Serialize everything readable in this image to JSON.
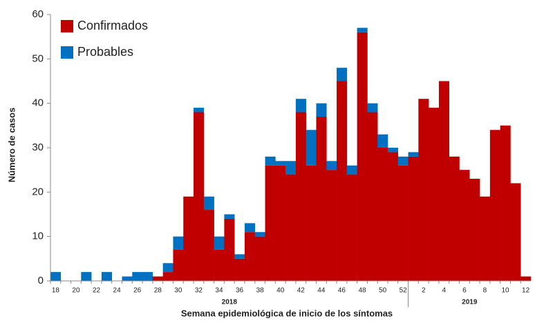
{
  "chart_data": {
    "type": "stacked_bar",
    "y_label": "Número de casos",
    "x_label": "Semana epidemiológica de inicio de los síntomas",
    "year_labels": [
      "2018",
      "2019"
    ],
    "categories": [
      "18",
      null,
      "20",
      null,
      "22",
      null,
      "24",
      null,
      "26",
      null,
      "28",
      null,
      "30",
      null,
      "32",
      null,
      "34",
      null,
      "36",
      null,
      "38",
      null,
      "40",
      null,
      "42",
      null,
      "44",
      null,
      "46",
      null,
      "48",
      null,
      "50",
      null,
      "52",
      null,
      "2",
      null,
      "4",
      null,
      "6",
      null,
      "8",
      null,
      "10",
      null,
      "12"
    ],
    "series": [
      {
        "name": "Confirmados",
        "color": "#c00000",
        "values": [
          0,
          0,
          0,
          0,
          0,
          0,
          0,
          0,
          0,
          0,
          1,
          2,
          7,
          19,
          38,
          16,
          7,
          14,
          5,
          11,
          10,
          26,
          26,
          24,
          38,
          26,
          37,
          25,
          45,
          24,
          56,
          38,
          30,
          29,
          26,
          28,
          41,
          39,
          45,
          28,
          25,
          23,
          19,
          34,
          35,
          22,
          1
        ]
      },
      {
        "name": "Probables",
        "color": "#0070c0",
        "values": [
          2,
          0,
          0,
          2,
          0,
          2,
          0,
          1,
          2,
          2,
          0,
          2,
          3,
          0,
          1,
          3,
          3,
          1,
          1,
          2,
          1,
          2,
          1,
          3,
          3,
          8,
          3,
          2,
          3,
          2,
          1,
          2,
          3,
          1,
          2,
          1,
          0,
          0,
          0,
          0,
          0,
          0,
          0,
          0,
          0,
          0,
          0
        ]
      }
    ],
    "ylim": [
      0,
      60
    ],
    "yticks": [
      0,
      10,
      20,
      30,
      40,
      50,
      60
    ],
    "legend": "top-left"
  }
}
